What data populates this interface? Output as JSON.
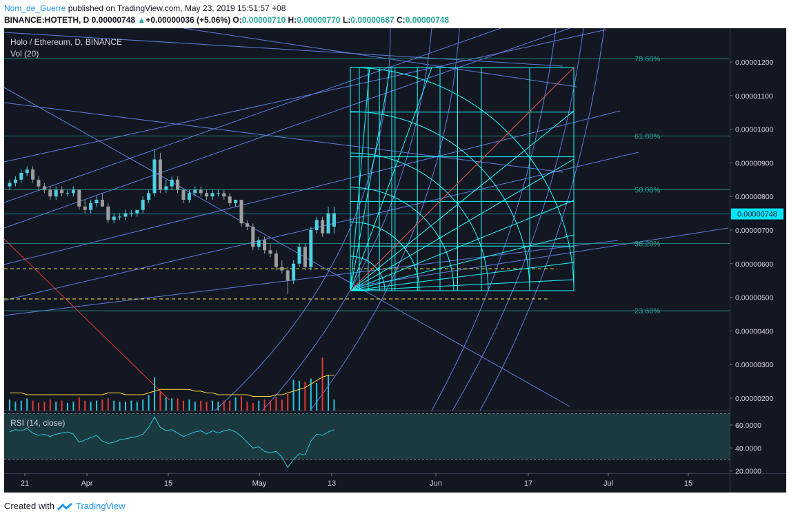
{
  "header": {
    "author": "Nom_de_Guerre",
    "published": "published on TradingView.com, May 23, 2019 15:51:57 +08",
    "symbol": "BINANCE:HOTETH, D",
    "last": "0.00000748",
    "change": "+0.00000036 (+5.06%)",
    "o_label": "O:",
    "o": "0.00000710",
    "h_label": "H:",
    "h": "0.00000770",
    "l_label": "L:",
    "l": "0.00000687",
    "c_label": "C:",
    "c": "0.00000748"
  },
  "legend": {
    "title": "Holo / Ethereum, D, BINANCE",
    "vol": "Vol (20)",
    "rsi": "RSI (14, close)"
  },
  "footer": {
    "created": "Created with",
    "brand": "TradingView"
  },
  "colors": {
    "bg": "#131722",
    "up": "#4dd0e1",
    "down": "#9e9e9e",
    "fib": "#26a69a",
    "fan": "#18ffff",
    "trend": "#5d7ee0",
    "red": "#e53935",
    "dash": "#ffeb3b",
    "price_badge": "#00e5ff"
  },
  "chart_data": {
    "type": "candlestick",
    "x_ticks": [
      "21",
      "Apr",
      "15",
      "May",
      "13",
      "Jun",
      "17",
      "Jul",
      "15"
    ],
    "y_ticks": [
      "0.00001200",
      "0.00001100",
      "0.00001000",
      "0.00000900",
      "0.00000800",
      "0.00000700",
      "0.00000600",
      "0.00000500",
      "0.00000400",
      "0.00000300",
      "0.00000200"
    ],
    "y_range": [
      1.7e-06,
      1.28e-05
    ],
    "current_price": "0.00000748",
    "fib_levels": [
      {
        "label": "78.60%",
        "value": 1.21e-05
      },
      {
        "label": "61.80%",
        "value": 9.8e-06
      },
      {
        "label": "50.00%",
        "value": 8.2e-06
      },
      {
        "label": "38.20%",
        "value": 6.6e-06
      },
      {
        "label": "23.60%",
        "value": 4.6e-06
      }
    ],
    "dashed_levels": [
      5.85e-06,
      4.95e-06
    ],
    "candles": [
      [
        8.3e-06,
        8.5e-06,
        8.2e-06,
        8.4e-06
      ],
      [
        8.4e-06,
        8.6e-06,
        8.3e-06,
        8.5e-06
      ],
      [
        8.5e-06,
        8.8e-06,
        8.4e-06,
        8.7e-06
      ],
      [
        8.7e-06,
        8.9e-06,
        8.6e-06,
        8.8e-06
      ],
      [
        8.8e-06,
        8.9e-06,
        8.4e-06,
        8.5e-06
      ],
      [
        8.5e-06,
        8.6e-06,
        8.2e-06,
        8.3e-06
      ],
      [
        8.3e-06,
        8.4e-06,
        8.1e-06,
        8.2e-06
      ],
      [
        8.2e-06,
        8.3e-06,
        7.9e-06,
        8e-06
      ],
      [
        8e-06,
        8.3e-06,
        7.9e-06,
        8.2e-06
      ],
      [
        8.2e-06,
        8.3e-06,
        8e-06,
        8.1e-06
      ],
      [
        8.1e-06,
        8.2e-06,
        8e-06,
        8.1e-06
      ],
      [
        8.1e-06,
        8.3e-06,
        8e-06,
        8.2e-06
      ],
      [
        8.2e-06,
        8.2e-06,
        7.6e-06,
        7.7e-06
      ],
      [
        7.7e-06,
        7.9e-06,
        7.5e-06,
        7.6e-06
      ],
      [
        7.6e-06,
        7.9e-06,
        7.5e-06,
        7.8e-06
      ],
      [
        7.8e-06,
        8e-06,
        7.7e-06,
        7.9e-06
      ],
      [
        7.9e-06,
        8.1e-06,
        7.7e-06,
        7.7e-06
      ],
      [
        7.7e-06,
        7.8e-06,
        7.2e-06,
        7.3e-06
      ],
      [
        7.3e-06,
        7.5e-06,
        7.2e-06,
        7.4e-06
      ],
      [
        7.4e-06,
        7.5e-06,
        7.3e-06,
        7.4e-06
      ],
      [
        7.4e-06,
        7.6e-06,
        7.3e-06,
        7.5e-06
      ],
      [
        7.5e-06,
        7.6e-06,
        7.4e-06,
        7.5e-06
      ],
      [
        7.5e-06,
        7.6e-06,
        7.4e-06,
        7.6e-06
      ],
      [
        7.6e-06,
        8e-06,
        7.5e-06,
        7.9e-06
      ],
      [
        7.9e-06,
        8.2e-06,
        7.8e-06,
        8.1e-06
      ],
      [
        8.1e-06,
        9.4e-06,
        8e-06,
        9.1e-06
      ],
      [
        9.1e-06,
        9.3e-06,
        8.1e-06,
        8.2e-06
      ],
      [
        8.2e-06,
        8.5e-06,
        8.1e-06,
        8.3e-06
      ],
      [
        8.3e-06,
        8.6e-06,
        8.2e-06,
        8.5e-06
      ],
      [
        8.5e-06,
        8.6e-06,
        8.1e-06,
        8.2e-06
      ],
      [
        8.2e-06,
        8.2e-06,
        7.8e-06,
        7.9e-06
      ],
      [
        7.9e-06,
        8.2e-06,
        7.8e-06,
        8.1e-06
      ],
      [
        8.1e-06,
        8.3e-06,
        8e-06,
        8.2e-06
      ],
      [
        8.2e-06,
        8.3e-06,
        8e-06,
        8.1e-06
      ],
      [
        8.1e-06,
        8.2e-06,
        7.9e-06,
        8e-06
      ],
      [
        8e-06,
        8.2e-06,
        7.9e-06,
        8.1e-06
      ],
      [
        8.1e-06,
        8.2e-06,
        8e-06,
        8.1e-06
      ],
      [
        8.1e-06,
        8.2e-06,
        7.9e-06,
        8e-06
      ],
      [
        8e-06,
        8.1e-06,
        7.7e-06,
        7.8e-06
      ],
      [
        7.8e-06,
        7.9e-06,
        7.7e-06,
        7.9e-06
      ],
      [
        7.9e-06,
        7.9e-06,
        7.1e-06,
        7.2e-06
      ],
      [
        7.2e-06,
        7.3e-06,
        7e-06,
        7.1e-06
      ],
      [
        7.1e-06,
        7.2e-06,
        6.4e-06,
        6.5e-06
      ],
      [
        6.5e-06,
        6.8e-06,
        6.4e-06,
        6.7e-06
      ],
      [
        6.7e-06,
        6.8e-06,
        6.3e-06,
        6.4e-06
      ],
      [
        6.4e-06,
        6.6e-06,
        6.2e-06,
        6.3e-06
      ],
      [
        6.3e-06,
        6.4e-06,
        5.8e-06,
        5.9e-06
      ],
      [
        5.9e-06,
        6.1e-06,
        5.7e-06,
        5.8e-06
      ],
      [
        5.8e-06,
        5.9e-06,
        5.1e-06,
        5.5e-06
      ],
      [
        5.5e-06,
        6.1e-06,
        5.4e-06,
        6e-06
      ],
      [
        6e-06,
        6.6e-06,
        5.9e-06,
        6.5e-06
      ],
      [
        6.5e-06,
        6.6e-06,
        5.8e-06,
        5.9e-06
      ],
      [
        5.9e-06,
        7.1e-06,
        5.8e-06,
        7e-06
      ],
      [
        7e-06,
        7.4e-06,
        6.9e-06,
        7.3e-06
      ],
      [
        7.3e-06,
        7.4e-06,
        6.8e-06,
        6.9e-06
      ],
      [
        6.9e-06,
        7.7e-06,
        6.9e-06,
        7.5e-06
      ],
      [
        7.1e-06,
        7.7e-06,
        6.9e-06,
        7.5e-06
      ]
    ],
    "volume": [
      10,
      8,
      9,
      11,
      9,
      7,
      8,
      10,
      8,
      9,
      7,
      8,
      12,
      9,
      8,
      9,
      10,
      11,
      9,
      8,
      8,
      9,
      8,
      10,
      14,
      30,
      18,
      12,
      11,
      11,
      9,
      10,
      8,
      9,
      8,
      9,
      8,
      9,
      9,
      12,
      13,
      8,
      7,
      9,
      10,
      9,
      12,
      10,
      15,
      28,
      27,
      26,
      29,
      25,
      48,
      32,
      10
    ],
    "volume_ma": [
      10,
      10,
      10,
      9,
      9,
      9,
      9,
      9,
      9,
      9,
      9,
      9,
      9,
      9,
      9,
      9,
      9,
      10,
      10,
      10,
      9,
      9,
      9,
      9,
      10,
      11,
      12,
      12,
      12,
      12,
      12,
      12,
      11,
      11,
      10,
      10,
      9,
      9,
      9,
      9,
      9,
      9,
      8,
      8,
      8,
      8,
      9,
      9,
      10,
      11,
      12,
      13,
      15,
      17,
      19,
      20,
      20
    ],
    "rsi_ticks": [
      "60.0000",
      "40.0000",
      "20.0000"
    ],
    "rsi_range": [
      18,
      72
    ],
    "rsi_bands": [
      70,
      30
    ],
    "rsi": [
      54,
      56,
      55,
      57,
      53,
      51,
      52,
      50,
      52,
      53,
      54,
      52,
      45,
      47,
      49,
      51,
      46,
      44,
      45,
      47,
      48,
      49,
      50,
      52,
      58,
      67,
      58,
      55,
      56,
      53,
      50,
      52,
      54,
      55,
      52,
      55,
      53,
      55,
      56,
      54,
      50,
      45,
      40,
      41,
      37,
      36,
      37,
      32,
      23,
      30,
      35,
      34,
      46,
      52,
      51,
      54,
      56
    ]
  }
}
